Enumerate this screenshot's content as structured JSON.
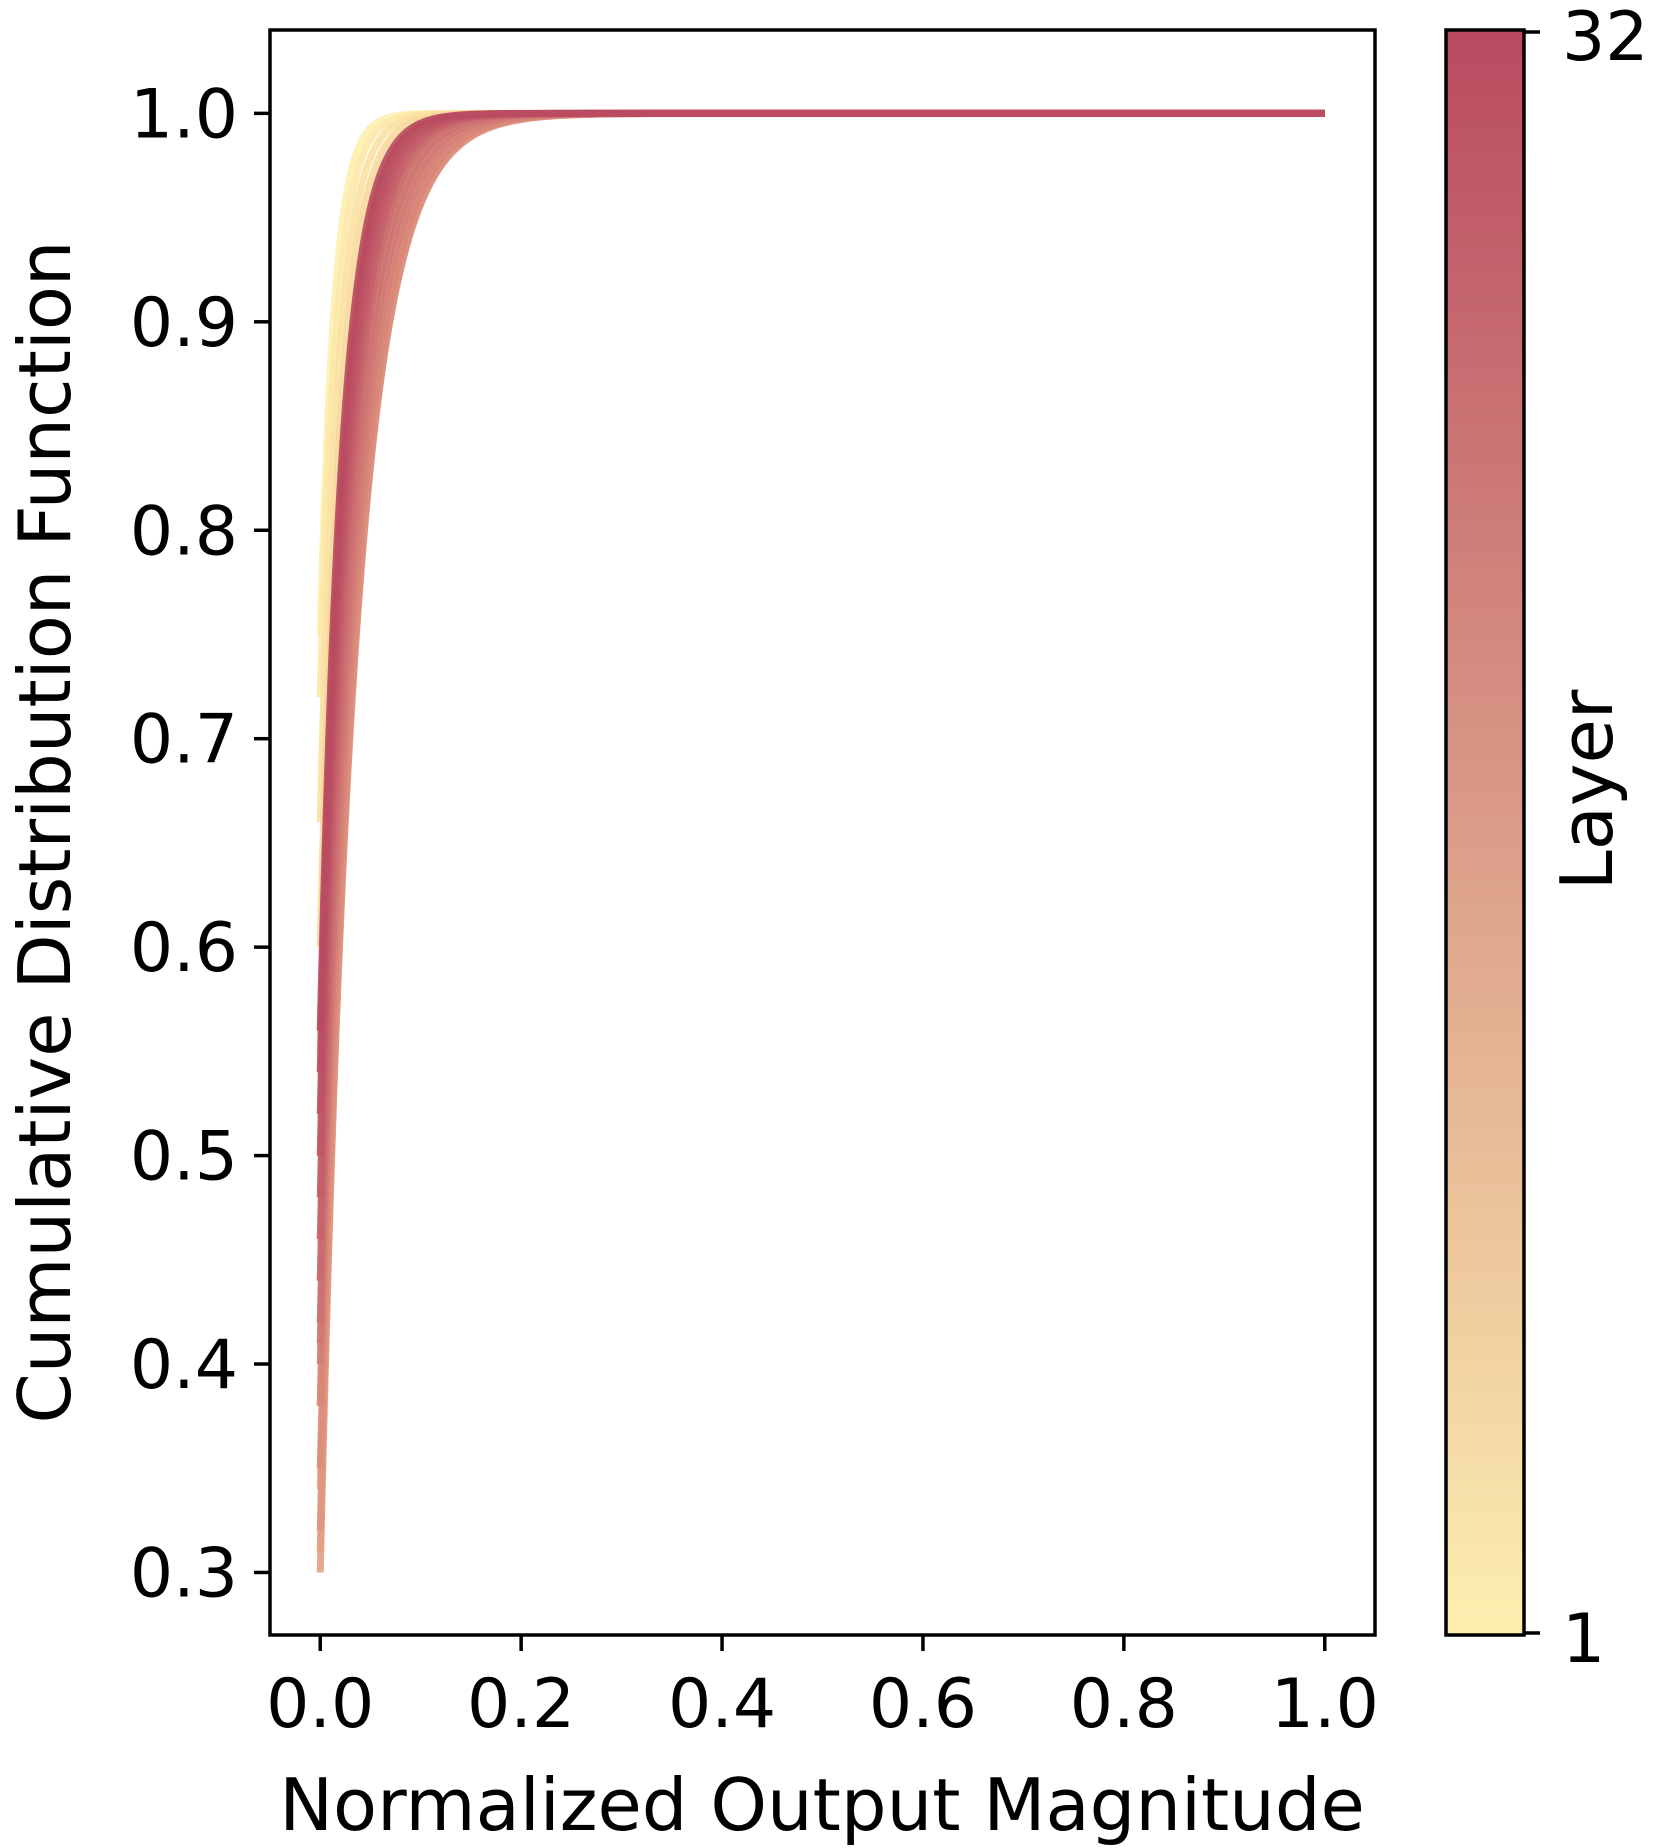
{
  "chart_data": {
    "type": "line",
    "title": "",
    "xlabel": "Normalized Output Magnitude",
    "ylabel": "Cumulative Distribution Function",
    "xlim": [
      -0.05,
      1.05
    ],
    "ylim": [
      0.27,
      1.04
    ],
    "xticks": [
      0.0,
      0.2,
      0.4,
      0.6,
      0.8,
      1.0
    ],
    "xtick_labels": [
      "0.0",
      "0.2",
      "0.4",
      "0.6",
      "0.8",
      "1.0"
    ],
    "yticks": [
      0.3,
      0.4,
      0.5,
      0.6,
      0.7,
      0.8,
      0.9,
      1.0
    ],
    "ytick_labels": [
      "0.3",
      "0.4",
      "0.5",
      "0.6",
      "0.7",
      "0.8",
      "0.9",
      "1.0"
    ],
    "grid": false,
    "legend": "none",
    "colorbar": {
      "label": "Layer",
      "min": 1,
      "max": 32,
      "tick_labels": [
        "1",
        "32"
      ],
      "color_low": "#fdefb0",
      "color_high": "#b94a60"
    },
    "series_shape": "cdf: y = 1 - (1 - y0) * exp(-x / scale), one curve per layer, each ending at (1.0, 1.0)",
    "series": [
      {
        "layer": 1,
        "y0": 0.75,
        "scale": 0.014,
        "color": "#fdefb0"
      },
      {
        "layer": 2,
        "y0": 0.72,
        "scale": 0.016,
        "color": "#fce8a8"
      },
      {
        "layer": 3,
        "y0": 0.66,
        "scale": 0.018,
        "color": "#fbe0a3"
      },
      {
        "layer": 4,
        "y0": 0.6,
        "scale": 0.02,
        "color": "#f8d89c"
      },
      {
        "layer": 5,
        "y0": 0.55,
        "scale": 0.022,
        "color": "#f5d098"
      },
      {
        "layer": 6,
        "y0": 0.5,
        "scale": 0.024,
        "color": "#f2c793"
      },
      {
        "layer": 7,
        "y0": 0.44,
        "scale": 0.026,
        "color": "#efbf8f"
      },
      {
        "layer": 8,
        "y0": 0.38,
        "scale": 0.028,
        "color": "#ecb68b"
      },
      {
        "layer": 9,
        "y0": 0.34,
        "scale": 0.03,
        "color": "#e8ae88"
      },
      {
        "layer": 10,
        "y0": 0.31,
        "scale": 0.032,
        "color": "#e5a685"
      },
      {
        "layer": 11,
        "y0": 0.3,
        "scale": 0.034,
        "color": "#e39e82"
      },
      {
        "layer": 12,
        "y0": 0.32,
        "scale": 0.036,
        "color": "#df967f"
      },
      {
        "layer": 13,
        "y0": 0.35,
        "scale": 0.037,
        "color": "#db8e7c"
      },
      {
        "layer": 14,
        "y0": 0.38,
        "scale": 0.036,
        "color": "#d88679"
      },
      {
        "layer": 15,
        "y0": 0.4,
        "scale": 0.034,
        "color": "#d47f77"
      },
      {
        "layer": 16,
        "y0": 0.41,
        "scale": 0.032,
        "color": "#d17874"
      },
      {
        "layer": 17,
        "y0": 0.42,
        "scale": 0.03,
        "color": "#cd7171"
      },
      {
        "layer": 18,
        "y0": 0.44,
        "scale": 0.028,
        "color": "#ca6a6f"
      },
      {
        "layer": 19,
        "y0": 0.46,
        "scale": 0.027,
        "color": "#c6646c"
      },
      {
        "layer": 20,
        "y0": 0.48,
        "scale": 0.026,
        "color": "#c35e6a"
      },
      {
        "layer": 21,
        "y0": 0.5,
        "scale": 0.025,
        "color": "#c05868"
      },
      {
        "layer": 22,
        "y0": 0.52,
        "scale": 0.024,
        "color": "#bd5366"
      },
      {
        "layer": 23,
        "y0": 0.54,
        "scale": 0.023,
        "color": "#bb4f63"
      },
      {
        "layer": 24,
        "y0": 0.56,
        "scale": 0.022,
        "color": "#b94a60"
      }
    ]
  }
}
